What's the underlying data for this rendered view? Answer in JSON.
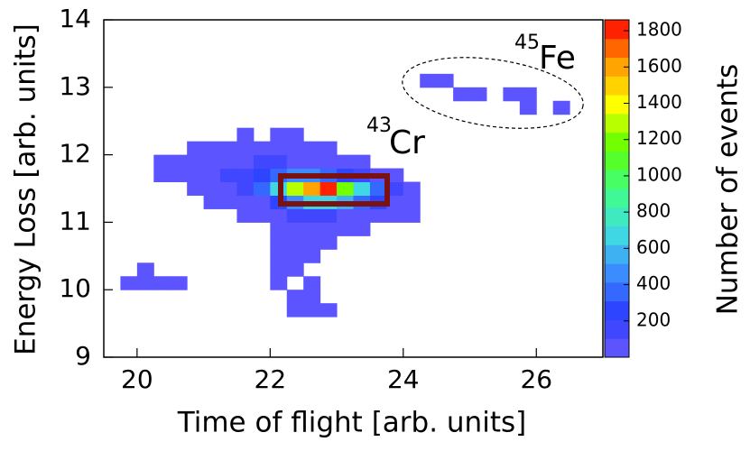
{
  "chart_data": {
    "type": "heatmap",
    "xlabel": "Time of flight [arb. units]",
    "ylabel": "Energy Loss [arb. units]",
    "colorbar_label": "Number of events",
    "annotations": [
      {
        "mass": "43",
        "element": "Cr"
      },
      {
        "mass": "45",
        "element": "Fe"
      }
    ],
    "xlim": [
      19.5,
      27
    ],
    "ylim": [
      9,
      14
    ],
    "xticks": [
      20,
      22,
      24,
      26
    ],
    "yticks": [
      9,
      10,
      11,
      12,
      13,
      14
    ],
    "clim": [
      0,
      1860
    ],
    "cticks": [
      200,
      400,
      600,
      800,
      1000,
      1200,
      1400,
      1600,
      1800
    ],
    "colormap": [
      "#6a5cff",
      "#2d3cff",
      "#3a8cff",
      "#40e0e0",
      "#40ff80",
      "#60ff00",
      "#ffff00",
      "#ff9900",
      "#ff0000"
    ],
    "xbins": [
      19.75,
      20,
      20.25,
      20.5,
      20.75,
      21,
      21.25,
      21.5,
      21.75,
      22,
      22.25,
      22.5,
      22.75,
      23,
      23.25,
      23.5,
      23.75,
      24,
      24.25,
      24.5,
      24.75,
      25,
      25.25,
      25.5,
      25.75,
      26,
      26.25,
      26.5,
      26.75
    ],
    "ybins": [
      9.6,
      9.8,
      10,
      10.2,
      10.4,
      10.6,
      10.8,
      11,
      11.2,
      11.4,
      11.6,
      11.8,
      12,
      12.2,
      12.4,
      12.6,
      12.8,
      13,
      13.2,
      13.4
    ],
    "z": [
      [
        null,
        null,
        null,
        null,
        null,
        null,
        null,
        null,
        null,
        null,
        10,
        10,
        10,
        null,
        null,
        null,
        null,
        null,
        null,
        null,
        null,
        null,
        null,
        null,
        null,
        null,
        null,
        null
      ],
      [
        null,
        null,
        null,
        null,
        null,
        null,
        null,
        null,
        null,
        null,
        10,
        10,
        null,
        null,
        null,
        null,
        null,
        null,
        null,
        null,
        null,
        null,
        null,
        null,
        null,
        null,
        null,
        null
      ],
      [
        20,
        40,
        40,
        40,
        null,
        null,
        null,
        null,
        null,
        10,
        null,
        10,
        null,
        null,
        null,
        null,
        null,
        null,
        null,
        null,
        null,
        null,
        null,
        null,
        null,
        null,
        null,
        null
      ],
      [
        null,
        10,
        null,
        null,
        null,
        null,
        null,
        null,
        null,
        20,
        30,
        null,
        null,
        null,
        null,
        null,
        null,
        null,
        null,
        null,
        null,
        null,
        null,
        null,
        null,
        null,
        null,
        null
      ],
      [
        null,
        null,
        null,
        null,
        null,
        null,
        null,
        null,
        null,
        20,
        40,
        20,
        null,
        null,
        null,
        null,
        null,
        null,
        null,
        null,
        null,
        null,
        null,
        null,
        null,
        null,
        null,
        null
      ],
      [
        null,
        null,
        null,
        null,
        null,
        null,
        null,
        null,
        null,
        30,
        60,
        40,
        20,
        null,
        null,
        null,
        null,
        null,
        null,
        null,
        null,
        null,
        null,
        null,
        null,
        null,
        null,
        null
      ],
      [
        null,
        null,
        null,
        null,
        null,
        null,
        null,
        null,
        null,
        30,
        80,
        80,
        60,
        30,
        20,
        null,
        null,
        null,
        null,
        null,
        null,
        null,
        null,
        null,
        null,
        null,
        null,
        null
      ],
      [
        null,
        null,
        null,
        null,
        null,
        null,
        null,
        20,
        40,
        80,
        150,
        150,
        120,
        80,
        60,
        40,
        30,
        20,
        null,
        null,
        null,
        null,
        null,
        null,
        null,
        null,
        null,
        null
      ],
      [
        null,
        null,
        null,
        null,
        null,
        20,
        40,
        60,
        100,
        250,
        500,
        700,
        700,
        600,
        400,
        250,
        100,
        40,
        null,
        null,
        null,
        null,
        null,
        null,
        null,
        null,
        null,
        null
      ],
      [
        null,
        null,
        null,
        null,
        30,
        60,
        100,
        200,
        350,
        700,
        1300,
        1650,
        1800,
        1200,
        700,
        400,
        150,
        40,
        null,
        null,
        null,
        null,
        null,
        null,
        null,
        null,
        null,
        null
      ],
      [
        null,
        null,
        20,
        40,
        60,
        80,
        120,
        200,
        300,
        400,
        500,
        450,
        350,
        250,
        150,
        80,
        40,
        null,
        null,
        null,
        null,
        null,
        null,
        null,
        null,
        null,
        null,
        null
      ],
      [
        null,
        null,
        20,
        40,
        50,
        60,
        80,
        100,
        120,
        120,
        100,
        80,
        60,
        40,
        20,
        null,
        null,
        null,
        null,
        null,
        null,
        null,
        null,
        null,
        null,
        null,
        null,
        null
      ],
      [
        null,
        null,
        null,
        null,
        20,
        30,
        40,
        40,
        50,
        40,
        40,
        30,
        20,
        null,
        null,
        null,
        null,
        null,
        null,
        null,
        null,
        null,
        null,
        null,
        null,
        null,
        null,
        null
      ],
      [
        null,
        null,
        null,
        null,
        null,
        null,
        null,
        10,
        null,
        10,
        20,
        null,
        null,
        null,
        null,
        null,
        null,
        null,
        null,
        null,
        null,
        null,
        null,
        null,
        null,
        null,
        null,
        null
      ],
      [
        null,
        null,
        null,
        null,
        null,
        null,
        null,
        null,
        null,
        null,
        null,
        null,
        null,
        null,
        null,
        null,
        null,
        null,
        null,
        null,
        null,
        null,
        null,
        null,
        null,
        null,
        null,
        null
      ],
      [
        null,
        null,
        null,
        null,
        null,
        null,
        null,
        null,
        null,
        null,
        null,
        null,
        null,
        null,
        null,
        null,
        null,
        null,
        null,
        null,
        null,
        null,
        null,
        null,
        20,
        null,
        10,
        null
      ],
      [
        null,
        null,
        null,
        null,
        null,
        null,
        null,
        null,
        null,
        null,
        null,
        null,
        null,
        null,
        null,
        null,
        null,
        null,
        null,
        null,
        40,
        40,
        null,
        40,
        40,
        null,
        null,
        null
      ],
      [
        null,
        null,
        null,
        null,
        null,
        null,
        null,
        null,
        null,
        null,
        null,
        null,
        null,
        null,
        null,
        null,
        null,
        null,
        20,
        20,
        null,
        null,
        null,
        null,
        null,
        null,
        null,
        null
      ],
      [
        null,
        null,
        null,
        null,
        null,
        null,
        null,
        null,
        null,
        null,
        null,
        null,
        null,
        null,
        null,
        null,
        null,
        null,
        null,
        null,
        null,
        null,
        null,
        null,
        null,
        null,
        null,
        null
      ]
    ]
  }
}
